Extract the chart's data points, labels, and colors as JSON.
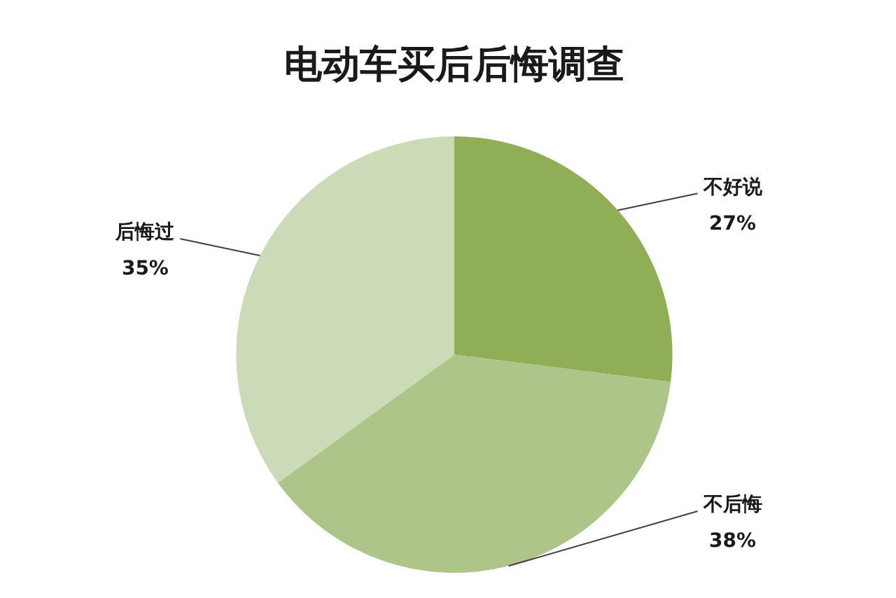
{
  "chart_data": {
    "type": "pie",
    "title": "电动车买后后悔调查",
    "categories": [
      "不好说",
      "不后悔",
      "后悔过"
    ],
    "values": [
      27,
      38,
      35
    ],
    "value_labels": [
      "27%",
      "38%",
      "35%"
    ],
    "colors": [
      "#8fae56",
      "#adc589",
      "#cbdbb7"
    ],
    "legend": false
  }
}
